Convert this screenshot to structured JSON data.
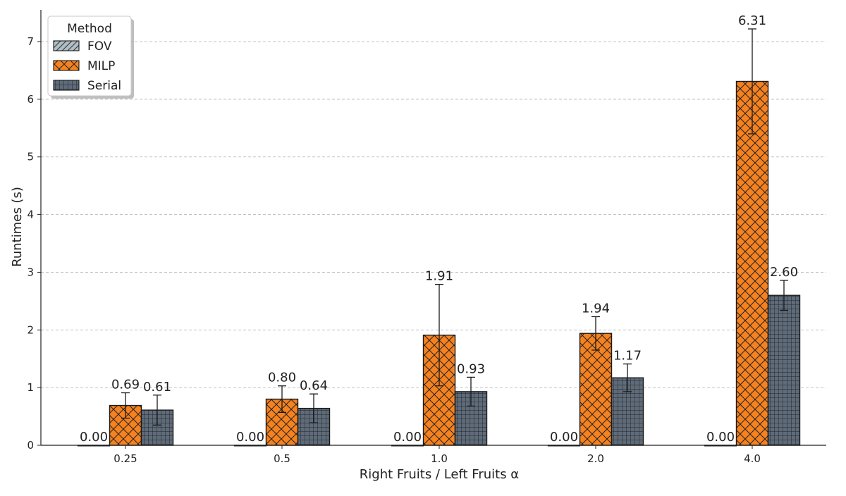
{
  "chart_data": {
    "type": "bar",
    "title": "",
    "xlabel": "Right Fruits / Left Fruits α",
    "ylabel": "Runtimes (s)",
    "categories": [
      "0.25",
      "0.5",
      "1.0",
      "2.0",
      "4.0"
    ],
    "ylim": [
      0,
      7.55
    ],
    "yticks": [
      0,
      1,
      2,
      3,
      4,
      5,
      6,
      7
    ],
    "grid": "horizontal dashed",
    "legend_title": "Method",
    "legend_position": "top-left",
    "series": [
      {
        "name": "FOV",
        "values": [
          0.0,
          0.0,
          0.0,
          0.0,
          0.0
        ],
        "labels": [
          "0.00",
          "0.00",
          "0.00",
          "0.00",
          "0.00"
        ],
        "errors": [
          0,
          0,
          0,
          0,
          0
        ],
        "color": "#b0bec5",
        "hatch": "diagonal"
      },
      {
        "name": "MILP",
        "values": [
          0.69,
          0.8,
          1.91,
          1.94,
          6.31
        ],
        "labels": [
          "0.69",
          "0.80",
          "1.91",
          "1.94",
          "6.31"
        ],
        "errors": [
          0.22,
          0.23,
          0.88,
          0.29,
          0.91
        ],
        "color": "#f5821f",
        "hatch": "crosshatch-diagonal"
      },
      {
        "name": "Serial",
        "values": [
          0.61,
          0.64,
          0.93,
          1.17,
          2.6
        ],
        "labels": [
          "0.61",
          "0.64",
          "0.93",
          "1.17",
          "2.60"
        ],
        "errors": [
          0.26,
          0.25,
          0.25,
          0.24,
          0.26
        ],
        "color": "#5f6b78",
        "hatch": "grid"
      }
    ]
  }
}
